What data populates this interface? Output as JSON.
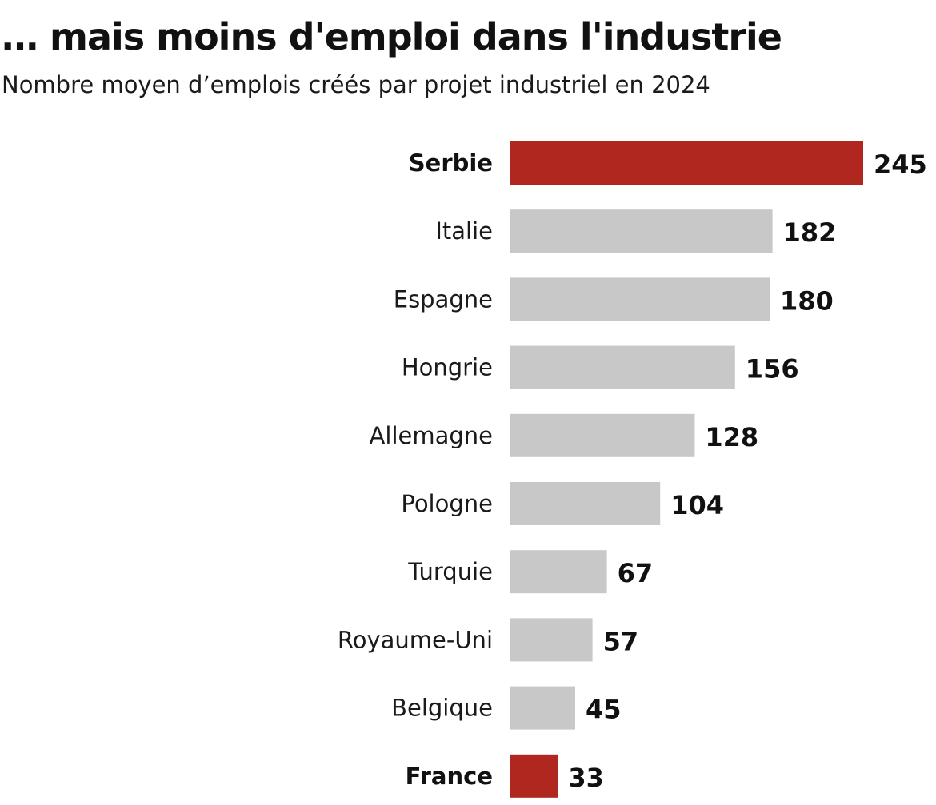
{
  "chart_data": {
    "type": "bar",
    "orientation": "horizontal",
    "title": "… mais moins d'emploi dans l'industrie",
    "subtitle": "Nombre moyen d’emplois créés par projet industriel en 2024",
    "categories": [
      "Serbie",
      "Italie",
      "Espagne",
      "Hongrie",
      "Allemagne",
      "Pologne",
      "Turquie",
      "Royaume-Uni",
      "Belgique",
      "France"
    ],
    "values": [
      245,
      182,
      180,
      156,
      128,
      104,
      67,
      57,
      45,
      33
    ],
    "value_labels": [
      "245",
      "182",
      "180",
      "156",
      "128",
      "104",
      "67",
      "57",
      "45",
      "33"
    ],
    "highlighted": [
      "Serbie",
      "France"
    ],
    "xlim": [
      0,
      245
    ],
    "grid": false,
    "axes_visible": false,
    "colors": {
      "default_bar": "#c8c8c8",
      "highlight_bar": "#b0271f"
    }
  }
}
